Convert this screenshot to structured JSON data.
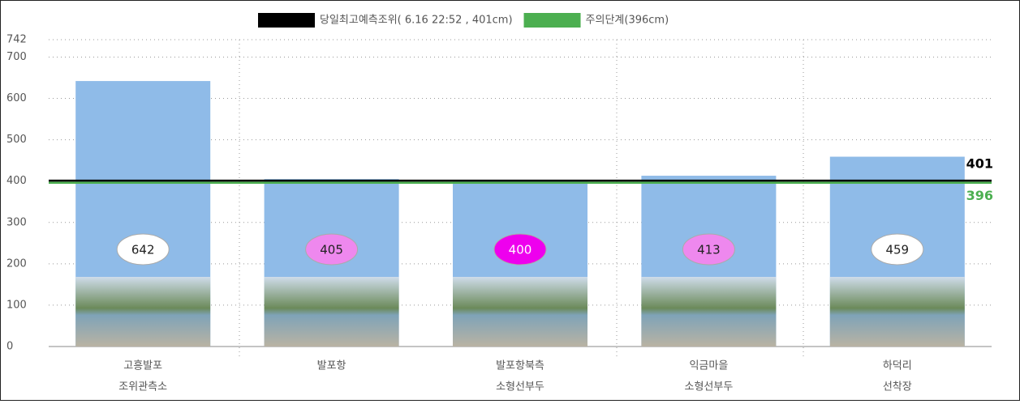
{
  "chart_data": {
    "type": "bar",
    "categories": [
      [
        "고흥발포",
        "조위관측소"
      ],
      [
        "발포항"
      ],
      [
        "발포항북측",
        "소형선부두"
      ],
      [
        "익금마을",
        "소형선부두"
      ],
      [
        "하덕리",
        "선착장"
      ]
    ],
    "values": [
      642,
      405,
      400,
      413,
      459
    ],
    "color": "#8fbbe8",
    "label_colors": [
      "#ffffff",
      "#ee88ee",
      "#ee00ee",
      "#ee88ee",
      "#ffffff"
    ],
    "ylim": [
      0,
      742
    ],
    "yticks": [
      0,
      100,
      200,
      300,
      400,
      500,
      600,
      700,
      742
    ],
    "grid": true,
    "lines": [
      {
        "name": "당일최고예측조위( 6.16  22:52 , 401cm)",
        "value": 401,
        "color": "#000000"
      },
      {
        "name": "주의단계(396cm)",
        "value": 396,
        "color": "#4caf50"
      }
    ]
  }
}
